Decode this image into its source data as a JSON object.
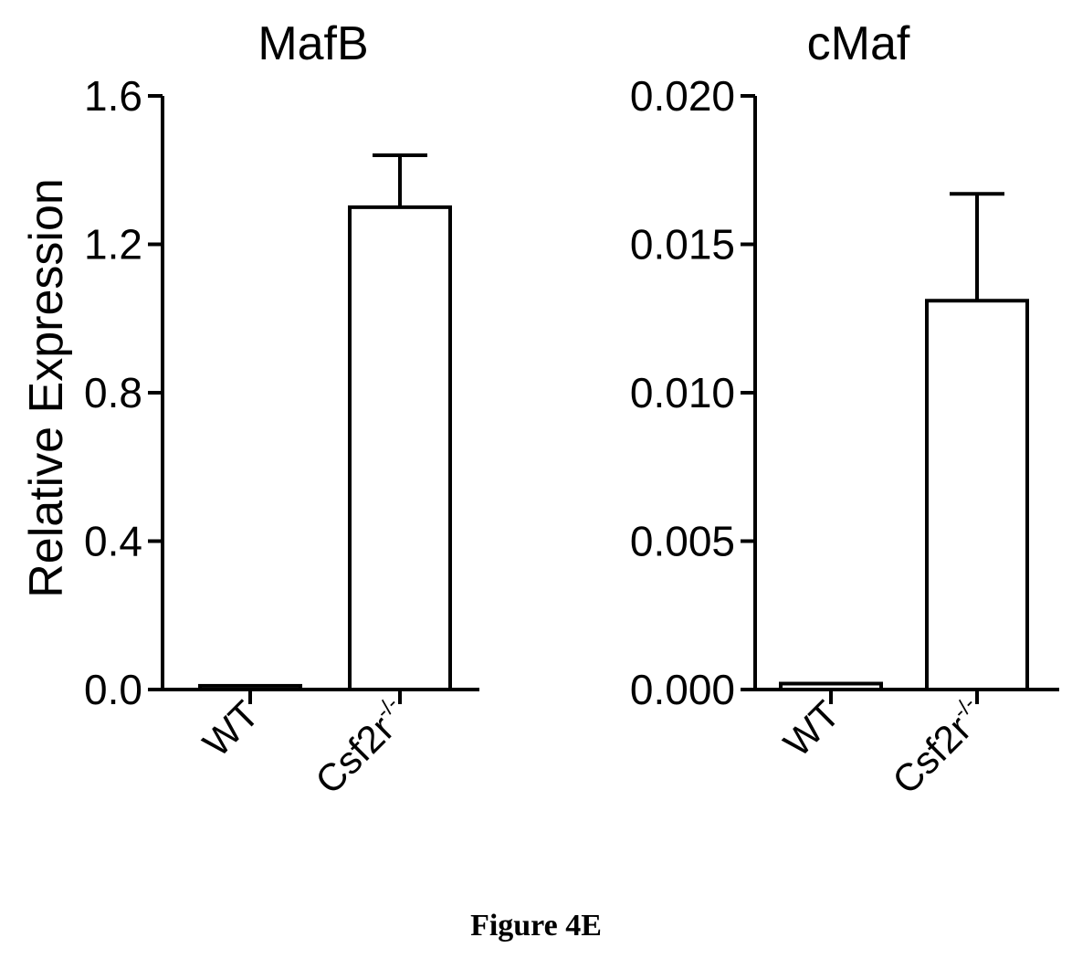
{
  "chart_data": [
    {
      "type": "bar",
      "title": "MafB",
      "ylabel": "Relative Expression",
      "xlabel": "",
      "categories": [
        "WT",
        "Csf2r-/-"
      ],
      "category_labels": [
        "WT",
        "Csf2r",
        "-/-"
      ],
      "values": [
        0.01,
        1.3
      ],
      "errors": [
        0.0,
        0.14
      ],
      "ylim": [
        0,
        1.6
      ],
      "yticks": [
        "0.0",
        "0.4",
        "0.8",
        "1.2",
        "1.6"
      ],
      "ytick_values": [
        0,
        0.4,
        0.8,
        1.2,
        1.6
      ],
      "bar_fill": "#ffffff",
      "bar_stroke": "#000000"
    },
    {
      "type": "bar",
      "title": "cMaf",
      "ylabel": "",
      "xlabel": "",
      "categories": [
        "WT",
        "Csf2r-/-"
      ],
      "category_labels": [
        "WT",
        "Csf2r",
        "-/-"
      ],
      "values": [
        0.0002,
        0.0131
      ],
      "errors": [
        0.0,
        0.0036
      ],
      "ylim": [
        0,
        0.02
      ],
      "yticks": [
        "0.000",
        "0.005",
        "0.010",
        "0.015",
        "0.020"
      ],
      "ytick_values": [
        0,
        0.005,
        0.01,
        0.015,
        0.02
      ],
      "bar_fill": "#ffffff",
      "bar_stroke": "#000000"
    }
  ],
  "caption": "Figure 4E"
}
